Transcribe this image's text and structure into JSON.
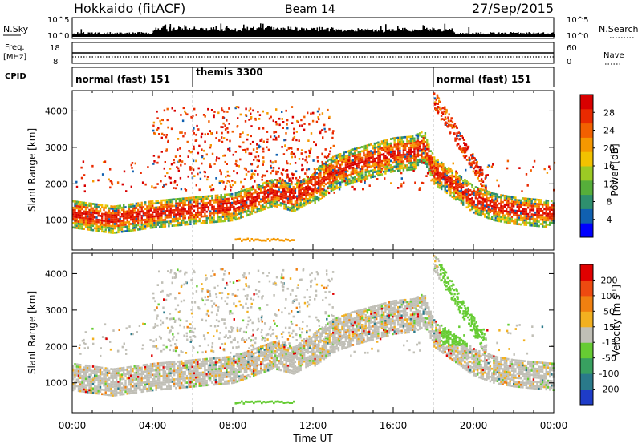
{
  "header": {
    "station": "Hokkaido (fitACF)",
    "beam": "Beam 14",
    "date": "27/Sep/2015"
  },
  "status_panels": {
    "nsky_label": "N.Sky",
    "nsky_ticks": [
      "10^5",
      "10^0"
    ],
    "nsearch_label": "N.Search",
    "freq_label": "Freq.",
    "freq_unit": "[MHz]",
    "freq_ticks": [
      "18",
      "8"
    ],
    "nave_label": "Nave",
    "nave_ticks": [
      "60",
      "0"
    ],
    "cpid_label": "CPID",
    "cpid_segments": [
      {
        "label": "normal (fast) 151",
        "start_hour": 0,
        "end_hour": 6
      },
      {
        "label": "themis 3300",
        "start_hour": 6,
        "end_hour": 18
      },
      {
        "label": "normal (fast) 151",
        "start_hour": 18,
        "end_hour": 24
      }
    ]
  },
  "chart_data": [
    {
      "type": "heatmap",
      "title": "",
      "xlabel": "Time UT",
      "ylabel": "Slant Range [km]",
      "x_ticks": [
        "00:00",
        "04:00",
        "08:00",
        "12:00",
        "16:00",
        "20:00",
        "00:00"
      ],
      "xlim_hours": [
        0,
        24
      ],
      "y_ticks": [
        1000,
        2000,
        3000,
        4000
      ],
      "ylim": [
        180,
        4560
      ],
      "colorbar": {
        "label": "Power [dB]",
        "ticks": [
          4,
          8,
          12,
          16,
          20,
          24,
          28
        ],
        "range": [
          0,
          32
        ],
        "colors": [
          "#0000ff",
          "#1060b0",
          "#2e8f6e",
          "#56ae3a",
          "#9cca24",
          "#f2c200",
          "#f59800",
          "#f26000",
          "#e92a00",
          "#d80000"
        ]
      },
      "main_band_km": [
        [
          0,
          1150
        ],
        [
          2,
          1000
        ],
        [
          4,
          1150
        ],
        [
          6,
          1250
        ],
        [
          8,
          1350
        ],
        [
          9,
          1550
        ],
        [
          10,
          1750
        ],
        [
          11,
          1600
        ],
        [
          12,
          1900
        ],
        [
          13,
          2300
        ],
        [
          14,
          2500
        ],
        [
          15,
          2650
        ],
        [
          16,
          2800
        ],
        [
          17,
          2850
        ],
        [
          17.5,
          3000
        ],
        [
          18,
          2350
        ],
        [
          19,
          1950
        ],
        [
          20,
          1550
        ],
        [
          21,
          1350
        ],
        [
          22,
          1250
        ],
        [
          24,
          1150
        ]
      ]
    },
    {
      "type": "heatmap",
      "title": "",
      "xlabel": "Time UT",
      "ylabel": "Slant Range [km]",
      "x_ticks": [
        "00:00",
        "04:00",
        "08:00",
        "12:00",
        "16:00",
        "20:00",
        "00:00"
      ],
      "xlim_hours": [
        0,
        24
      ],
      "y_ticks": [
        1000,
        2000,
        3000,
        4000
      ],
      "ylim": [
        180,
        4560
      ],
      "colorbar": {
        "label": "Velocity [m s^-1]",
        "ticks": [
          200,
          100,
          50,
          15,
          -15,
          -50,
          -100,
          -200
        ],
        "colors": [
          "#1e3cc8",
          "#2a7a8a",
          "#38a060",
          "#66cc33",
          "#c0bfb6",
          "#f2b020",
          "#f08010",
          "#ee4a10",
          "#e00000"
        ]
      },
      "main_band_km": [
        [
          0,
          1150
        ],
        [
          2,
          1000
        ],
        [
          4,
          1150
        ],
        [
          6,
          1250
        ],
        [
          8,
          1350
        ],
        [
          9,
          1550
        ],
        [
          10,
          1750
        ],
        [
          11,
          1600
        ],
        [
          12,
          1900
        ],
        [
          13,
          2300
        ],
        [
          14,
          2500
        ],
        [
          15,
          2650
        ],
        [
          16,
          2800
        ],
        [
          17,
          2850
        ],
        [
          17.5,
          3000
        ],
        [
          18,
          2350
        ],
        [
          19,
          1950
        ],
        [
          20,
          1550
        ],
        [
          21,
          1350
        ],
        [
          22,
          1250
        ],
        [
          24,
          1150
        ]
      ]
    }
  ]
}
